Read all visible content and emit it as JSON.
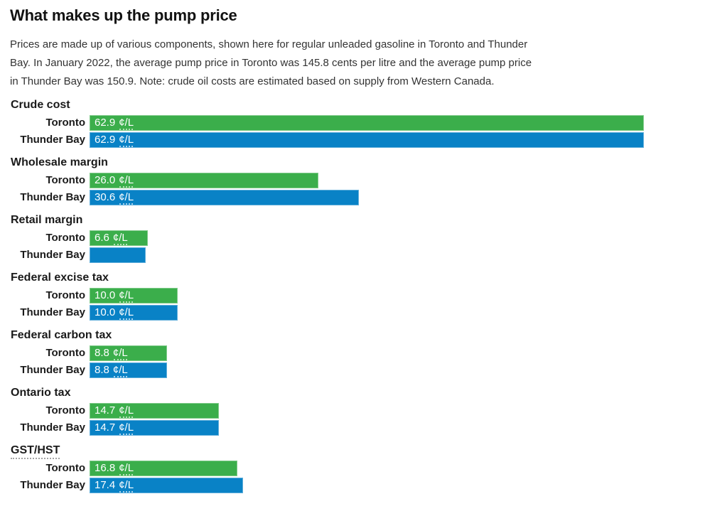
{
  "title": "What makes up the pump price",
  "description": "Prices are made up of various components, shown here for regular unleaded gasoline in Toronto and Thunder Bay. In January 2022, the average pump price in Toronto was 145.8 cents per litre and the average pump price in Thunder Bay was 150.9. Note: crude oil costs are estimated based on supply from Western Canada.",
  "colors": {
    "toronto": "#3BAE4B",
    "thunder_bay": "#0982C6",
    "value_text": "#ffffff",
    "heading_text": "#1a1a1a",
    "body_text": "#333333"
  },
  "chart_data": {
    "type": "bar",
    "orientation": "horizontal",
    "unit": "¢/L",
    "max_value": 62.9,
    "series": [
      "Toronto",
      "Thunder Bay"
    ],
    "legend_position": "none",
    "grid": false,
    "groups": [
      {
        "category": "Crude cost",
        "bars": [
          {
            "series": "Toronto",
            "value": 62.9,
            "value_text": "62.9",
            "unit": "¢/L"
          },
          {
            "series": "Thunder Bay",
            "value": 62.9,
            "value_text": "62.9",
            "unit": "¢/L"
          }
        ]
      },
      {
        "category": "Wholesale margin",
        "bars": [
          {
            "series": "Toronto",
            "value": 26.0,
            "value_text": "26.0",
            "unit": "¢/L"
          },
          {
            "series": "Thunder Bay",
            "value": 30.6,
            "value_text": "30.6",
            "unit": "¢/L"
          }
        ]
      },
      {
        "category": "Retail margin",
        "bars": [
          {
            "series": "Toronto",
            "value": 6.6,
            "value_text": "6.6",
            "unit": "¢/L"
          },
          {
            "series": "Thunder Bay",
            "value": 6.4,
            "value_text": "",
            "unit": ""
          }
        ]
      },
      {
        "category": "Federal excise tax",
        "bars": [
          {
            "series": "Toronto",
            "value": 10.0,
            "value_text": "10.0",
            "unit": "¢/L"
          },
          {
            "series": "Thunder Bay",
            "value": 10.0,
            "value_text": "10.0",
            "unit": "¢/L"
          }
        ]
      },
      {
        "category": "Federal carbon tax",
        "bars": [
          {
            "series": "Toronto",
            "value": 8.8,
            "value_text": "8.8",
            "unit": "¢/L"
          },
          {
            "series": "Thunder Bay",
            "value": 8.8,
            "value_text": "8.8",
            "unit": "¢/L"
          }
        ]
      },
      {
        "category": "Ontario tax",
        "bars": [
          {
            "series": "Toronto",
            "value": 14.7,
            "value_text": "14.7",
            "unit": "¢/L"
          },
          {
            "series": "Thunder Bay",
            "value": 14.7,
            "value_text": "14.7",
            "unit": "¢/L"
          }
        ]
      },
      {
        "category": "GST/HST",
        "bars": [
          {
            "series": "Toronto",
            "value": 16.8,
            "value_text": "16.8",
            "unit": "¢/L"
          },
          {
            "series": "Thunder Bay",
            "value": 17.4,
            "value_text": "17.4",
            "unit": "¢/L"
          }
        ]
      }
    ]
  }
}
